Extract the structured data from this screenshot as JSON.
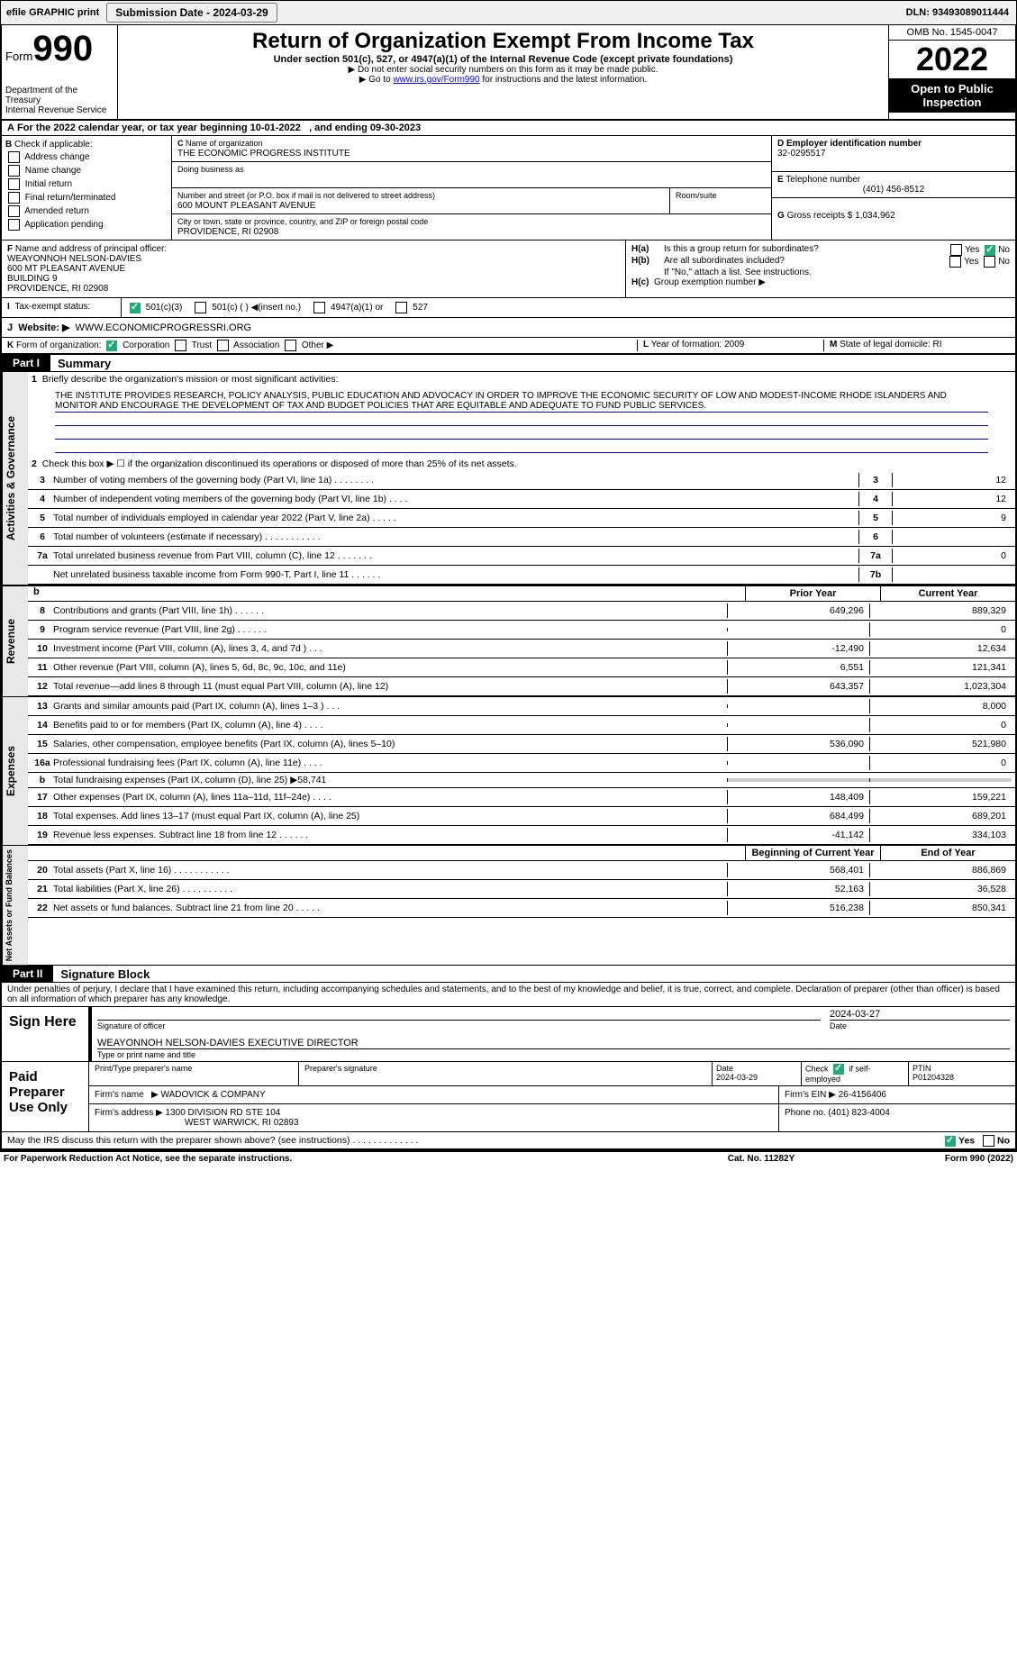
{
  "header": {
    "efile": "efile GRAPHIC print",
    "btn": "Submission Date - 2024-03-29",
    "dln": "DLN: 93493089011444"
  },
  "title": {
    "form": "Form",
    "num": "990",
    "main": "Return of Organization Exempt From Income Tax",
    "sub": "Under section 501(c), 527, or 4947(a)(1) of the Internal Revenue Code (except private foundations)",
    "l1": "▶ Do not enter social security numbers on this form as it may be made public.",
    "l2": "▶ Go to",
    "link": "www.irs.gov/Form990",
    "l3": "for instructions and the latest information.",
    "dept": "Department of the Treasury",
    "irs": "Internal Revenue Service",
    "omb": "OMB No. 1545-0047",
    "year": "2022",
    "open": "Open to Public Inspection"
  },
  "A": {
    "cal": "For the 2022 calendar year, or tax year beginning 10-01-2022",
    "end": ", and ending 09-30-2023"
  },
  "B": {
    "hdr": "Check if applicable:",
    "ops": [
      "Address change",
      "Name change",
      "Initial return",
      "Final return/terminated",
      "Amended return",
      "Application pending"
    ]
  },
  "C": {
    "lbl": "Name of organization",
    "name": "THE ECONOMIC PROGRESS INSTITUTE",
    "dba": "Doing business as",
    "addr_lbl": "Number and street (or P.O. box if mail is not delivered to street address)",
    "addr": "600 MOUNT PLEASANT AVENUE",
    "room": "Room/suite",
    "city_lbl": "City or town, state or province, country, and ZIP or foreign postal code",
    "city": "PROVIDENCE, RI  02908"
  },
  "D": {
    "lbl": "Employer identification number",
    "ein": "32-0295517"
  },
  "E": {
    "lbl": "Telephone number",
    "tel": "(401) 456-8512"
  },
  "G": {
    "lbl": "Gross receipts $",
    "val": "1,034,962"
  },
  "F": {
    "lbl": "Name and address of principal officer:",
    "name": "WEAYONNOH NELSON-DAVIES",
    "l1": "600 MT PLEASANT AVENUE",
    "l2": "BUILDING 9",
    "l3": "PROVIDENCE, RI  02908"
  },
  "H": {
    "a": "Is this a group return for subordinates?",
    "b": "Are all subordinates included?",
    "bnote": "If \"No,\" attach a list. See instructions.",
    "c": "Group exemption number ▶"
  },
  "I": {
    "lbl": "Tax-exempt status:",
    "o1": "501(c)(3)",
    "o2": "501(c) (  ) ◀(insert no.)",
    "o3": "4947(a)(1) or",
    "o4": "527"
  },
  "J": {
    "lbl": "Website: ▶",
    "val": "WWW.ECONOMICPROGRESSRI.ORG"
  },
  "K": {
    "lbl": "Form of organization:",
    "o1": "Corporation",
    "o2": "Trust",
    "o3": "Association",
    "o4": "Other ▶"
  },
  "L": {
    "lbl": "Year of formation:",
    "val": "2009"
  },
  "M": {
    "lbl": "State of legal domicile:",
    "val": "RI"
  },
  "part1": {
    "id": "Part I",
    "title": "Summary"
  },
  "sec_gov": "Activities & Governance",
  "sec_rev": "Revenue",
  "sec_exp": "Expenses",
  "sec_net": "Net Assets or Fund Balances",
  "q1": {
    "n": "1",
    "t": "Briefly describe the organization's mission or most significant activities:",
    "m": "THE INSTITUTE PROVIDES RESEARCH, POLICY ANALYSIS, PUBLIC EDUCATION AND ADVOCACY IN ORDER TO IMPROVE THE ECONOMIC SECURITY OF LOW AND MODEST-INCOME RHODE ISLANDERS AND MONITOR AND ENCOURAGE THE DEVELOPMENT OF TAX AND BUDGET POLICIES THAT ARE EQUITABLE AND ADEQUATE TO FUND PUBLIC SERVICES."
  },
  "q2": {
    "n": "2",
    "t": "Check this box ▶ ☐  if the organization discontinued its operations or disposed of more than 25% of its net assets."
  },
  "gov": [
    {
      "n": "3",
      "t": "Number of voting members of the governing body (Part VI, line 1a)  .   .   .   .   .   .   .   .",
      "b": "3",
      "v": "12"
    },
    {
      "n": "4",
      "t": "Number of independent voting members of the governing body (Part VI, line 1b)   .   .   .   .",
      "b": "4",
      "v": "12"
    },
    {
      "n": "5",
      "t": "Total number of individuals employed in calendar year 2022 (Part V, line 2a)   .   .   .   .   .",
      "b": "5",
      "v": "9"
    },
    {
      "n": "6",
      "t": "Total number of volunteers (estimate if necessary)   .   .   .   .   .   .   .   .   .   .   .",
      "b": "6",
      "v": ""
    },
    {
      "n": "7a",
      "t": "Total unrelated business revenue from Part VIII, column (C), line 12   .   .   .   .   .   .   .",
      "b": "7a",
      "v": "0"
    },
    {
      "n": "",
      "t": "Net unrelated business taxable income from Form 990-T, Part I, line 11   .   .   .   .   .   .",
      "b": "7b",
      "v": ""
    }
  ],
  "pycy": {
    "py": "Prior Year",
    "cy": "Current Year"
  },
  "rev": [
    {
      "n": "8",
      "t": "Contributions and grants (Part VIII, line 1h)   .   .   .   .   .   .",
      "p": "649,296",
      "c": "889,329"
    },
    {
      "n": "9",
      "t": "Program service revenue (Part VIII, line 2g)   .   .   .   .   .   .",
      "p": "",
      "c": "0"
    },
    {
      "n": "10",
      "t": "Investment income (Part VIII, column (A), lines 3, 4, and 7d )   .   .   .",
      "p": "-12,490",
      "c": "12,634"
    },
    {
      "n": "11",
      "t": "Other revenue (Part VIII, column (A), lines 5, 6d, 8c, 9c, 10c, and 11e)",
      "p": "6,551",
      "c": "121,341"
    },
    {
      "n": "12",
      "t": "Total revenue—add lines 8 through 11 (must equal Part VIII, column (A), line 12)",
      "p": "643,357",
      "c": "1,023,304"
    }
  ],
  "exp": [
    {
      "n": "13",
      "t": "Grants and similar amounts paid (Part IX, column (A), lines 1–3 )  .   .   .",
      "p": "",
      "c": "8,000"
    },
    {
      "n": "14",
      "t": "Benefits paid to or for members (Part IX, column (A), line 4)   .   .   .   .",
      "p": "",
      "c": "0"
    },
    {
      "n": "15",
      "t": "Salaries, other compensation, employee benefits (Part IX, column (A), lines 5–10)",
      "p": "536,090",
      "c": "521,980"
    },
    {
      "n": "16a",
      "t": "Professional fundraising fees (Part IX, column (A), line 11e)   .   .   .   .",
      "p": "",
      "c": "0"
    },
    {
      "n": "b",
      "t": "Total fundraising expenses (Part IX, column (D), line 25) ▶58,741",
      "p": "GRAY",
      "c": "GRAY"
    },
    {
      "n": "17",
      "t": "Other expenses (Part IX, column (A), lines 11a–11d, 11f–24e)   .   .   .   .",
      "p": "148,409",
      "c": "159,221"
    },
    {
      "n": "18",
      "t": "Total expenses. Add lines 13–17 (must equal Part IX, column (A), line 25)",
      "p": "684,499",
      "c": "689,201"
    },
    {
      "n": "19",
      "t": "Revenue less expenses. Subtract line 18 from line 12   .   .   .   .   .   .",
      "p": "-41,142",
      "c": "334,103"
    }
  ],
  "bceoy": {
    "b": "Beginning of Current Year",
    "e": "End of Year"
  },
  "net": [
    {
      "n": "20",
      "t": "Total assets (Part X, line 16)   .   .   .   .   .   .   .   .   .   .   .",
      "p": "568,401",
      "c": "886,869"
    },
    {
      "n": "21",
      "t": "Total liabilities (Part X, line 26)   .   .   .   .   .   .   .   .   .   .",
      "p": "52,163",
      "c": "36,528"
    },
    {
      "n": "22",
      "t": "Net assets or fund balances. Subtract line 21 from line 20   .   .   .   .   .",
      "p": "516,238",
      "c": "850,341"
    }
  ],
  "part2": {
    "id": "Part II",
    "title": "Signature Block"
  },
  "perjury": "Under penalties of perjury, I declare that I have examined this return, including accompanying schedules and statements, and to the best of my knowledge and belief, it is true, correct, and complete. Declaration of preparer (other than officer) is based on all information of which preparer has any knowledge.",
  "sig": {
    "here": "Sign Here",
    "sig": "Signature of officer",
    "date": "Date",
    "dv": "2024-03-27",
    "name": "WEAYONNOH NELSON-DAVIES  EXECUTIVE DIRECTOR",
    "typ": "Type or print name and title"
  },
  "prep": {
    "lbl": "Paid Preparer Use Only",
    "h1": "Print/Type preparer's name",
    "h2": "Preparer's signature",
    "h3": "Date",
    "d3": "2024-03-29",
    "h4": "Check",
    "h4b": "if self-employed",
    "h5": "PTIN",
    "pt": "P01204328",
    "f1": "Firm's name",
    "fn": "WADOVICK & COMPANY",
    "f2": "Firm's EIN ▶",
    "fe": "26-4156406",
    "a1": "Firm's address ▶",
    "ad": "1300 DIVISION RD STE 104",
    "city": "WEST WARWICK, RI  02893",
    "ph": "Phone no.",
    "pn": "(401) 823-4004"
  },
  "may": "May the IRS discuss this return with the preparer shown above? (see instructions)   .   .   .   .   .   .   .   .   .   .   .   .   .",
  "yes": "Yes",
  "no": "No",
  "ftr": {
    "l": "For Paperwork Reduction Act Notice, see the separate instructions.",
    "c": "Cat. No. 11282Y",
    "r": "Form 990 (2022)"
  }
}
